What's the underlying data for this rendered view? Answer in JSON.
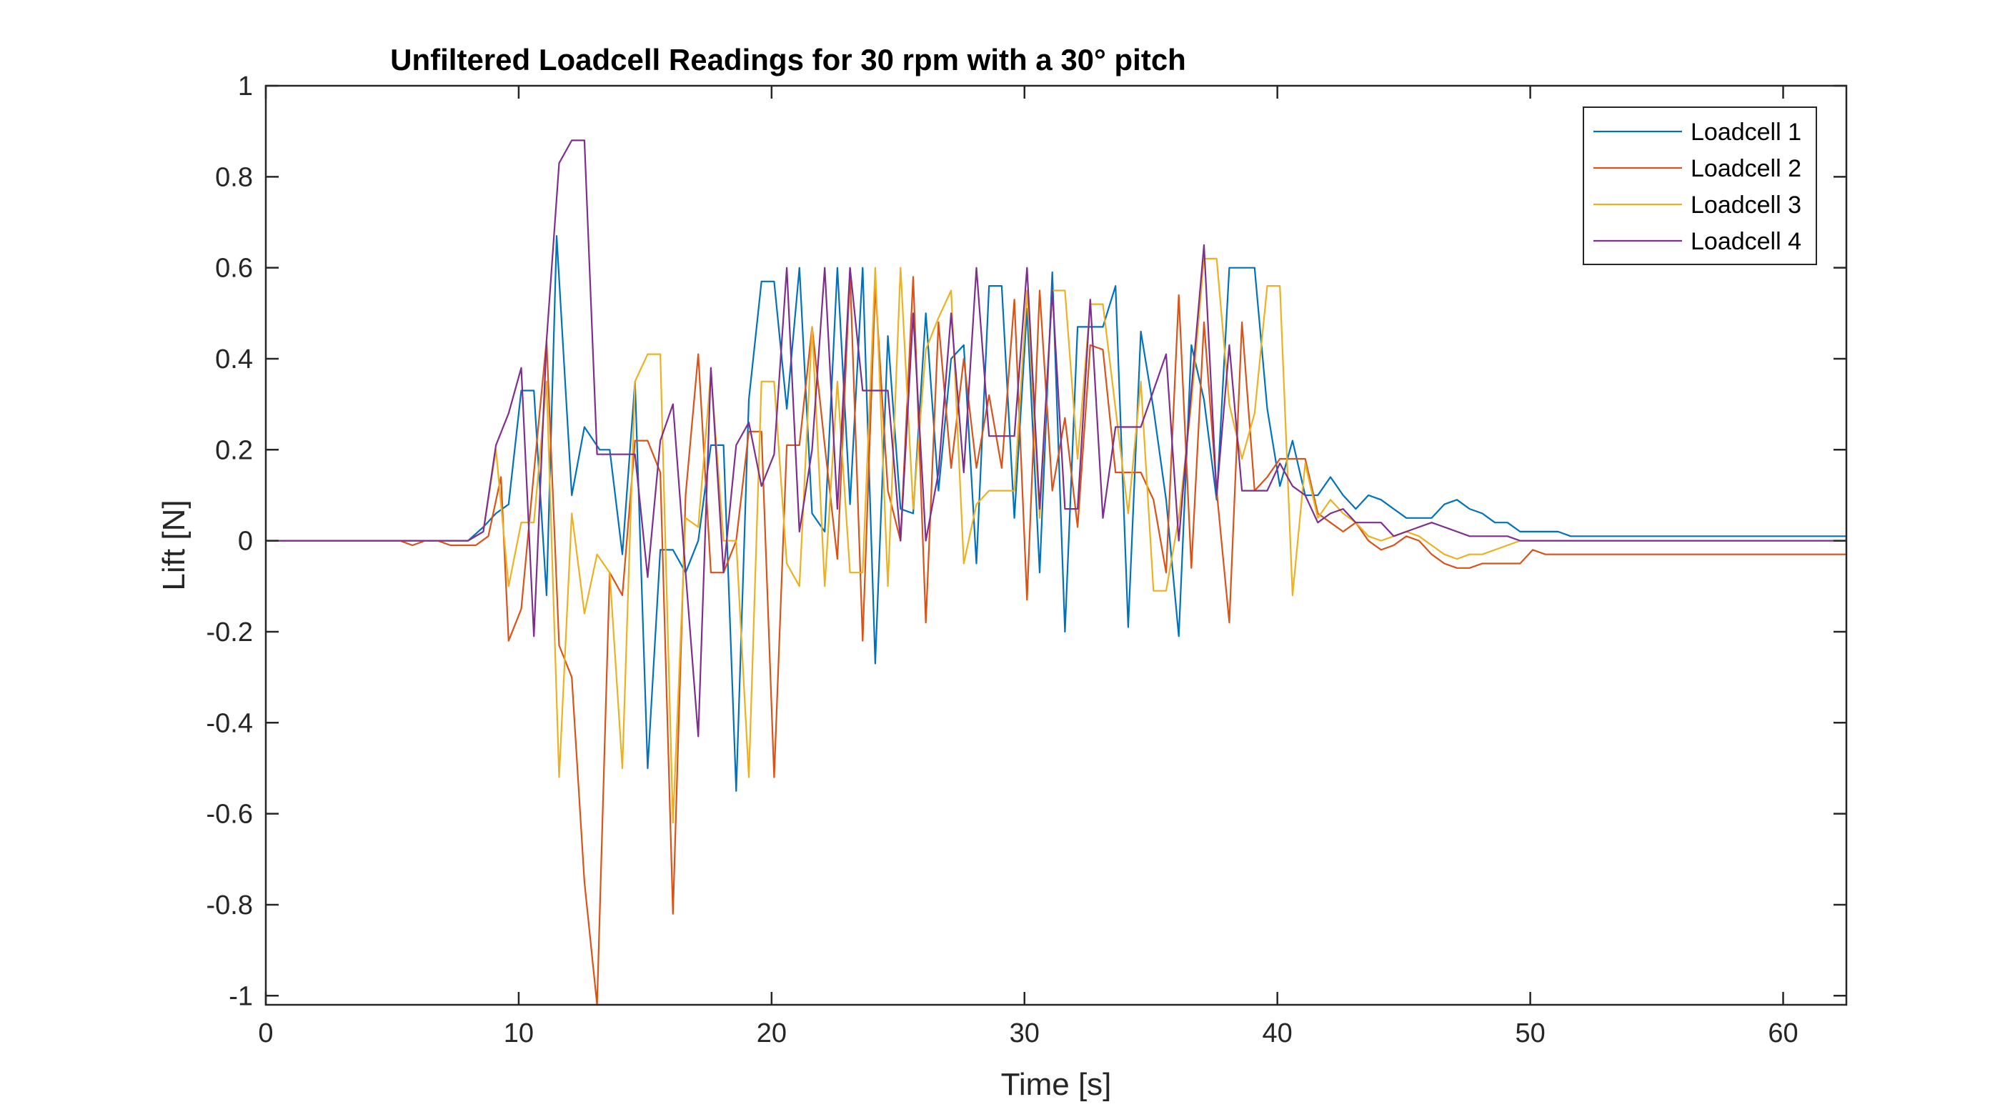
{
  "chart_data": {
    "type": "line",
    "title": "Unfiltered Loadcell Readings for 30 rpm with a 30° pitch",
    "xlabel": "Time [s]",
    "ylabel": "Lift [N]",
    "xlim": [
      0,
      62.5
    ],
    "ylim": [
      -1.02,
      1.0
    ],
    "xticks": [
      0,
      10,
      20,
      30,
      40,
      50,
      60
    ],
    "xtick_labels": [
      "0",
      "10",
      "20",
      "30",
      "40",
      "50",
      "60"
    ],
    "yticks": [
      -1,
      -0.8,
      -0.6,
      -0.4,
      -0.2,
      0,
      0.2,
      0.4,
      0.6,
      0.8,
      1
    ],
    "ytick_labels": [
      "-1",
      "-0.8",
      "-0.6",
      "-0.4",
      "-0.2",
      "0",
      "0.2",
      "0.4",
      "0.6",
      "0.8",
      "1"
    ],
    "grid": false,
    "legend_position": "top-right",
    "series": [
      {
        "name": "Loadcell 1",
        "color": "#0072BD",
        "x": [
          0,
          8,
          8.6,
          9.1,
          9.6,
          10.1,
          10.6,
          11.1,
          11.5,
          12.1,
          12.6,
          13.2,
          13.6,
          14.1,
          14.6,
          15.1,
          15.6,
          16.1,
          16.6,
          17.1,
          17.6,
          18.1,
          18.6,
          19.1,
          19.6,
          20.1,
          20.6,
          21.1,
          21.6,
          22.1,
          22.6,
          23.1,
          23.6,
          24.1,
          24.6,
          25.1,
          25.6,
          26.1,
          26.6,
          27.1,
          27.6,
          28.1,
          28.6,
          29.1,
          29.6,
          30.1,
          30.6,
          31.1,
          31.6,
          32.1,
          32.6,
          33.1,
          33.6,
          34.1,
          34.6,
          35.1,
          35.6,
          36.1,
          36.6,
          37.1,
          37.6,
          38.1,
          38.6,
          39.1,
          39.6,
          40.1,
          40.6,
          41.1,
          41.6,
          42.1,
          42.6,
          43.1,
          43.6,
          44.1,
          44.6,
          45.1,
          45.6,
          46.1,
          46.6,
          47.1,
          47.6,
          48.1,
          48.6,
          49.1,
          49.6,
          50.1,
          50.6,
          51.1,
          51.6,
          52,
          62.5
        ],
        "values": [
          0,
          0,
          0.03,
          0.06,
          0.08,
          0.33,
          0.33,
          -0.12,
          0.67,
          0.1,
          0.25,
          0.2,
          0.2,
          -0.03,
          0.35,
          -0.5,
          -0.02,
          -0.02,
          -0.07,
          0.0,
          0.21,
          0.21,
          -0.55,
          0.31,
          0.57,
          0.57,
          0.29,
          0.6,
          0.06,
          0.02,
          0.6,
          0.08,
          0.6,
          -0.27,
          0.45,
          0.07,
          0.06,
          0.5,
          0.11,
          0.4,
          0.43,
          -0.05,
          0.56,
          0.56,
          0.05,
          0.51,
          -0.07,
          0.59,
          -0.2,
          0.47,
          0.47,
          0.47,
          0.56,
          -0.19,
          0.46,
          0.29,
          0.09,
          -0.21,
          0.43,
          0.31,
          0.09,
          0.6,
          0.6,
          0.6,
          0.29,
          0.12,
          0.22,
          0.1,
          0.1,
          0.14,
          0.1,
          0.07,
          0.1,
          0.09,
          0.07,
          0.05,
          0.05,
          0.05,
          0.08,
          0.09,
          0.07,
          0.06,
          0.04,
          0.04,
          0.02,
          0.02,
          0.02,
          0.02,
          0.01,
          0.01,
          0.01
        ]
      },
      {
        "name": "Loadcell 2",
        "color": "#D95319",
        "x": [
          0,
          5.3,
          5.8,
          6.3,
          6.8,
          7.3,
          7.8,
          8.3,
          8.8,
          9.3,
          9.6,
          10.1,
          10.6,
          11.1,
          11.6,
          12.1,
          12.6,
          13.1,
          13.6,
          14.1,
          14.6,
          15.1,
          15.6,
          16.1,
          16.6,
          17.1,
          17.6,
          18.1,
          18.6,
          19.1,
          19.6,
          20.1,
          20.6,
          21.1,
          21.6,
          22.1,
          22.6,
          23.1,
          23.6,
          24.1,
          24.6,
          25.1,
          25.6,
          26.1,
          26.6,
          27.1,
          27.6,
          28.1,
          28.6,
          29.1,
          29.6,
          30.1,
          30.6,
          31.1,
          31.6,
          32.1,
          32.6,
          33.1,
          33.6,
          34.1,
          34.6,
          35.1,
          35.6,
          36.1,
          36.6,
          37.1,
          37.6,
          38.1,
          38.6,
          39.1,
          39.6,
          40.1,
          40.6,
          41.1,
          41.6,
          42.1,
          42.6,
          43.1,
          43.6,
          44.1,
          44.6,
          45.1,
          45.6,
          46.1,
          46.6,
          47.1,
          47.6,
          48.1,
          48.6,
          49.1,
          49.6,
          50.1,
          50.6,
          51.1,
          62.5
        ],
        "values": [
          0,
          0,
          -0.01,
          0.0,
          0.0,
          -0.01,
          -0.01,
          -0.01,
          0.01,
          0.14,
          -0.22,
          -0.15,
          0.15,
          0.44,
          -0.23,
          -0.3,
          -0.75,
          -1.02,
          -0.07,
          -0.12,
          0.22,
          0.22,
          0.15,
          -0.82,
          0.1,
          0.41,
          -0.07,
          -0.07,
          0.0,
          0.24,
          0.24,
          -0.52,
          0.21,
          0.21,
          0.47,
          0.21,
          -0.04,
          0.59,
          -0.22,
          0.56,
          0.11,
          0.0,
          0.58,
          -0.18,
          0.48,
          0.16,
          0.4,
          0.16,
          0.32,
          0.16,
          0.53,
          -0.13,
          0.55,
          0.11,
          0.27,
          0.03,
          0.43,
          0.42,
          0.15,
          0.15,
          0.15,
          0.09,
          -0.07,
          0.54,
          -0.06,
          0.48,
          0.11,
          -0.18,
          0.48,
          0.11,
          0.14,
          0.18,
          0.18,
          0.18,
          0.06,
          0.04,
          0.02,
          0.04,
          0.0,
          -0.02,
          -0.01,
          0.01,
          0.0,
          -0.03,
          -0.05,
          -0.06,
          -0.06,
          -0.05,
          -0.05,
          -0.05,
          -0.05,
          -0.02,
          -0.03,
          -0.03,
          -0.03
        ]
      },
      {
        "name": "Loadcell 3",
        "color": "#EDB120",
        "x": [
          0,
          8,
          8.6,
          9.1,
          9.6,
          10.1,
          10.6,
          11.1,
          11.6,
          12.1,
          12.6,
          13.1,
          13.6,
          14.1,
          14.6,
          15.1,
          15.6,
          16.1,
          16.6,
          17.1,
          17.6,
          18.1,
          18.6,
          19.1,
          19.6,
          20.1,
          20.6,
          21.1,
          21.6,
          22.1,
          22.6,
          23.1,
          23.6,
          24.1,
          24.6,
          25.1,
          25.6,
          26.1,
          26.6,
          27.1,
          27.6,
          28.1,
          28.6,
          29.1,
          29.6,
          30.1,
          30.6,
          31.1,
          31.6,
          32.1,
          32.6,
          33.1,
          33.6,
          34.1,
          34.6,
          35.1,
          35.6,
          36.1,
          36.6,
          37.1,
          37.6,
          38.1,
          38.6,
          39.1,
          39.6,
          40.1,
          40.6,
          41.1,
          41.6,
          42.1,
          42.6,
          43.1,
          43.6,
          44.1,
          44.6,
          45.1,
          45.6,
          46.1,
          46.6,
          47.1,
          47.6,
          48.1,
          48.6,
          49.1,
          49.6,
          50.1,
          50.6,
          51.1,
          62.5
        ],
        "values": [
          0,
          0,
          0.02,
          0.2,
          -0.1,
          0.04,
          0.04,
          0.35,
          -0.52,
          0.06,
          -0.16,
          -0.03,
          -0.07,
          -0.5,
          0.35,
          0.41,
          0.41,
          -0.62,
          0.05,
          0.03,
          0.37,
          0.0,
          0.0,
          -0.52,
          0.35,
          0.35,
          -0.05,
          -0.1,
          0.47,
          -0.1,
          0.35,
          -0.07,
          -0.07,
          0.6,
          -0.1,
          0.6,
          0.07,
          0.42,
          0.49,
          0.55,
          -0.05,
          0.08,
          0.11,
          0.11,
          0.11,
          0.55,
          0.05,
          0.55,
          0.55,
          0.18,
          0.52,
          0.52,
          0.29,
          0.06,
          0.35,
          -0.11,
          -0.11,
          0.05,
          0.3,
          0.62,
          0.62,
          0.3,
          0.18,
          0.28,
          0.56,
          0.56,
          -0.12,
          0.17,
          0.05,
          0.09,
          0.06,
          0.04,
          0.01,
          0.0,
          0.01,
          0.02,
          0.01,
          -0.01,
          -0.03,
          -0.04,
          -0.03,
          -0.03,
          -0.02,
          -0.01,
          0.0,
          0.0,
          0.0,
          0.0,
          0.0
        ]
      },
      {
        "name": "Loadcell 4",
        "color": "#7E2F8E",
        "x": [
          0,
          8,
          8.6,
          9.1,
          9.6,
          10.1,
          10.6,
          11.1,
          11.6,
          12.1,
          12.6,
          13.1,
          13.6,
          14.1,
          14.6,
          15.1,
          15.6,
          16.1,
          16.6,
          17.1,
          17.6,
          18.1,
          18.6,
          19.1,
          19.6,
          20.1,
          20.6,
          21.1,
          21.6,
          22.1,
          22.6,
          23.1,
          23.6,
          24.1,
          24.6,
          25.1,
          25.6,
          26.1,
          26.6,
          27.1,
          27.6,
          28.1,
          28.6,
          29.1,
          29.6,
          30.1,
          30.6,
          31.1,
          31.6,
          32.1,
          32.6,
          33.1,
          33.6,
          34.1,
          34.6,
          35.1,
          35.6,
          36.1,
          36.6,
          37.1,
          37.6,
          38.1,
          38.6,
          39.1,
          39.6,
          40.1,
          40.6,
          41.1,
          41.6,
          42.1,
          42.6,
          43.1,
          43.6,
          44.1,
          44.6,
          45.1,
          45.6,
          46.1,
          46.6,
          47.1,
          47.6,
          48.1,
          48.6,
          49.1,
          49.6,
          50.1,
          50.6,
          51.1,
          62.5
        ],
        "values": [
          0,
          0,
          0.02,
          0.21,
          0.28,
          0.38,
          -0.21,
          0.44,
          0.83,
          0.88,
          0.88,
          0.19,
          0.19,
          0.19,
          0.19,
          -0.08,
          0.22,
          0.3,
          -0.07,
          -0.43,
          0.38,
          -0.07,
          0.21,
          0.26,
          0.12,
          0.19,
          0.6,
          0.02,
          0.2,
          0.6,
          0.07,
          0.6,
          0.33,
          0.33,
          0.33,
          0.0,
          0.5,
          0.0,
          0.15,
          0.5,
          0.15,
          0.6,
          0.23,
          0.23,
          0.23,
          0.6,
          0.07,
          0.55,
          0.07,
          0.07,
          0.53,
          0.05,
          0.25,
          0.25,
          0.25,
          0.33,
          0.41,
          0.0,
          0.33,
          0.65,
          0.1,
          0.43,
          0.11,
          0.11,
          0.11,
          0.17,
          0.12,
          0.1,
          0.04,
          0.06,
          0.07,
          0.04,
          0.04,
          0.04,
          0.01,
          0.02,
          0.03,
          0.04,
          0.03,
          0.02,
          0.01,
          0.01,
          0.01,
          0.01,
          0.0,
          0.0,
          0.0,
          0.0,
          0.0
        ]
      }
    ]
  }
}
